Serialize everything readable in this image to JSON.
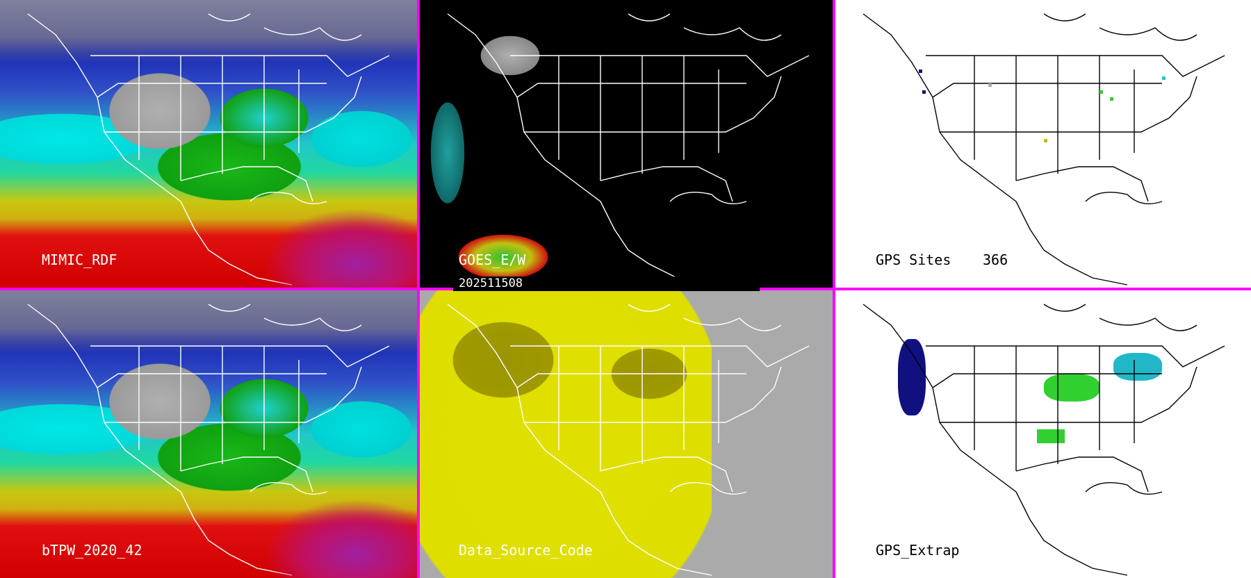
{
  "panels": {
    "top_left": {
      "label": "MIMIC_RDF"
    },
    "top_middle": {
      "label": "GOES_E/W"
    },
    "top_right": {
      "label": "GPS Sites",
      "count": "366"
    },
    "bottom_left": {
      "label": "bTPW_2020_42"
    },
    "bottom_middle": {
      "label": "Data_Source_Code"
    },
    "bottom_right": {
      "label": "GPS_Extrap"
    }
  },
  "timestamp": "202511508",
  "colors": {
    "divider": "#ff00ff",
    "low_moisture": "#1a2ab0",
    "mid_moisture": "#20d8d8",
    "high_moisture": "#d00000",
    "source_code_yellow": "#e0e000"
  }
}
